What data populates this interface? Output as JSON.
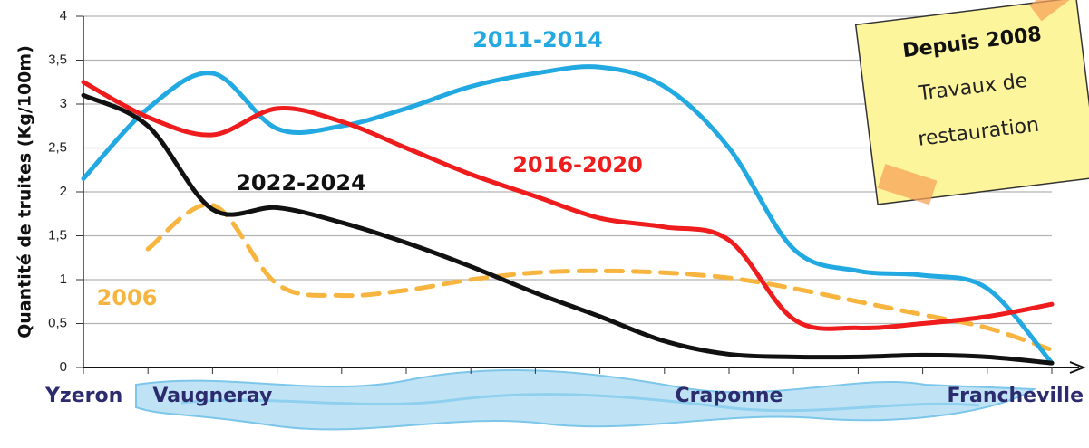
{
  "chart_data": {
    "type": "line",
    "y_label": "Quantité de truites (Kg/100m)",
    "categories": [
      "Yzeron",
      null,
      "Vaugneray",
      null,
      null,
      null,
      null,
      null,
      null,
      null,
      "Craponne",
      null,
      null,
      null,
      null,
      "Francheville"
    ],
    "series": [
      {
        "name": "2011-2014",
        "color": "#23a9e1",
        "dashed": false,
        "values": [
          2.15,
          2.95,
          3.35,
          2.72,
          2.75,
          2.95,
          3.2,
          3.35,
          3.42,
          3.2,
          2.5,
          1.35,
          1.1,
          1.05,
          0.9,
          0.05
        ]
      },
      {
        "name": "2016-2020",
        "color": "#ee1c1c",
        "dashed": false,
        "values": [
          3.25,
          2.85,
          2.65,
          2.95,
          2.8,
          2.5,
          2.2,
          1.95,
          1.7,
          1.6,
          1.45,
          0.55,
          0.45,
          0.5,
          0.58,
          0.72
        ]
      },
      {
        "name": "2022-2024",
        "color": "#111111",
        "dashed": false,
        "values": [
          3.1,
          2.75,
          1.8,
          1.82,
          1.65,
          1.42,
          1.15,
          0.85,
          0.58,
          0.3,
          0.15,
          0.12,
          0.12,
          0.14,
          0.12,
          0.05
        ]
      },
      {
        "name": "2006",
        "color": "#f7b53f",
        "dashed": true,
        "values": [
          null,
          1.35,
          1.85,
          0.95,
          0.82,
          0.88,
          1.0,
          1.08,
          1.1,
          1.08,
          1.02,
          0.9,
          0.75,
          0.6,
          0.45,
          0.2
        ]
      }
    ],
    "ylim": [
      0,
      4
    ],
    "yticks": [
      0,
      {
        "value": 0.5,
        "label": "0,5"
      },
      1,
      {
        "value": 1.5,
        "label": "1,5"
      },
      2,
      {
        "value": 2.5,
        "label": "2,5"
      },
      3,
      {
        "value": 3.5,
        "label": "3,5"
      },
      4
    ],
    "grid": true,
    "note": {
      "title": "Depuis 2008",
      "lines": [
        "Travaux de",
        "restauration"
      ]
    }
  }
}
